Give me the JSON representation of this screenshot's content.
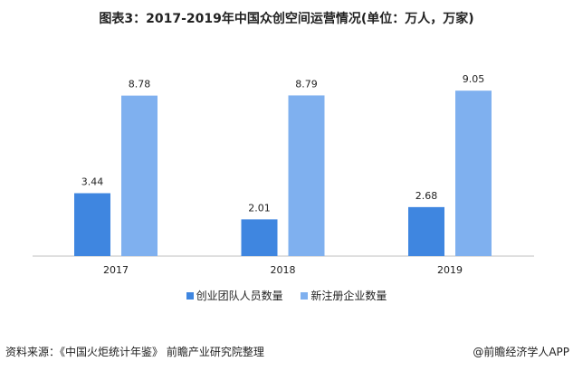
{
  "chart_data": {
    "type": "bar",
    "title": "图表3：2017-2019年中国众创空间运营情况(单位：万人，万家)",
    "categories": [
      "2017",
      "2018",
      "2019"
    ],
    "series": [
      {
        "name": "创业团队人员数量",
        "values": [
          3.44,
          2.01,
          2.68
        ],
        "color": "#3f86e0"
      },
      {
        "name": "新注册企业数量",
        "values": [
          8.78,
          8.79,
          9.05
        ],
        "color": "#7fb0ef"
      }
    ],
    "xlabel": "",
    "ylabel": "",
    "ylim": [
      0,
      10
    ],
    "grid": false,
    "legend": "bottom"
  },
  "footer": {
    "source": "资料来源：《中国火炬统计年鉴》 前瞻产业研究院整理",
    "credit": "@前瞻经济学人APP"
  }
}
